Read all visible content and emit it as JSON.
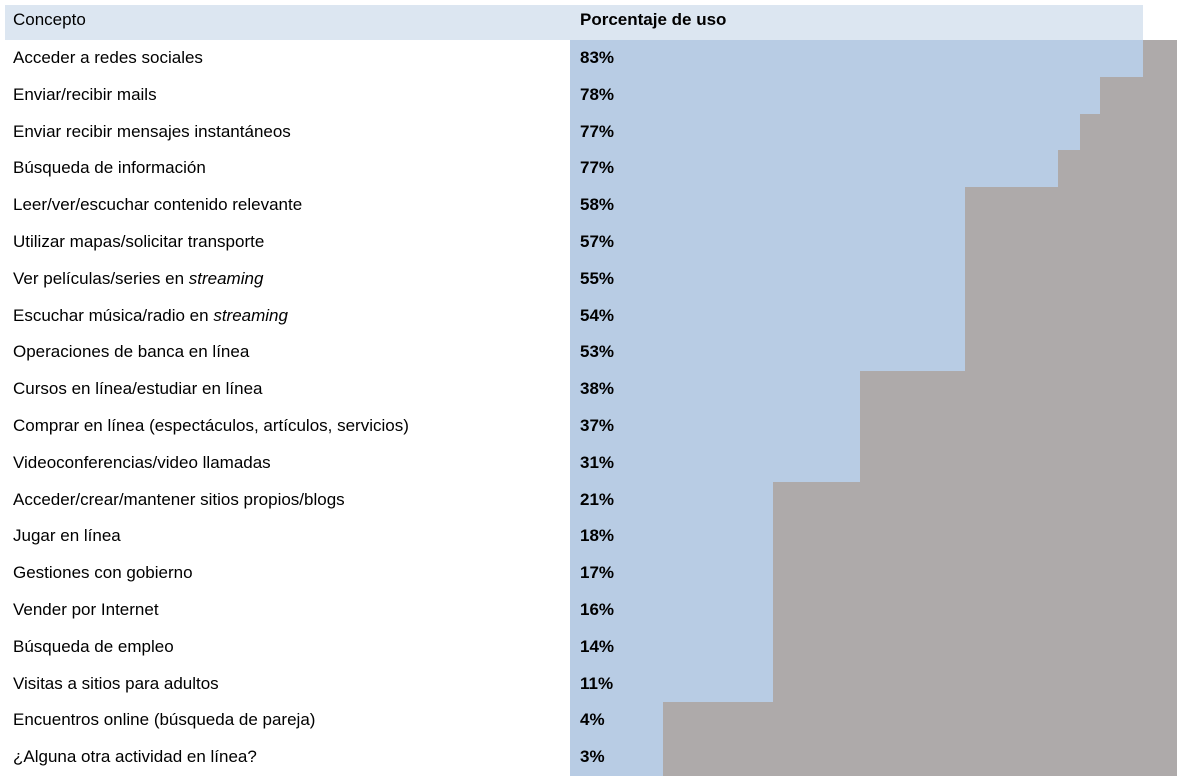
{
  "table": {
    "header": [
      "Concepto",
      "Porcentaje de uso"
    ],
    "rows": [
      [
        "Acceder a redes sociales",
        "83%"
      ],
      [
        "Enviar/recibir mails",
        "78%"
      ],
      [
        "Enviar recibir mensajes instantáneos",
        "77%"
      ],
      [
        "Búsqueda de información",
        "77%"
      ],
      [
        "Leer/ver/escuchar contenido relevante",
        "58%"
      ],
      [
        "Utilizar mapas/solicitar transporte",
        "57%"
      ],
      [
        "Ver películas/series en <i>streaming</i>",
        "55%"
      ],
      [
        "Escuchar música/radio en <i>streaming</i>",
        "54%"
      ],
      [
        "Operaciones de banca en línea",
        "53%"
      ],
      [
        "Cursos en línea/estudiar en línea",
        "38%"
      ],
      [
        "Comprar en línea (espectáculos, artículos, servicios)",
        "37%"
      ],
      [
        "Videoconferencias/video llamadas",
        "31%"
      ],
      [
        "Acceder/crear/mantener sitios propios/blogs",
        "21%"
      ],
      [
        "Jugar en línea",
        "18%"
      ],
      [
        "Gestiones con gobierno",
        "17%"
      ],
      [
        "Vender por Internet",
        "16%"
      ],
      [
        "Búsqueda de empleo",
        "14%"
      ],
      [
        "Visitas a sitios para adultos",
        "11%"
      ],
      [
        "Encuentros online (búsqueda de pareja)",
        "4%"
      ],
      [
        "¿Alguna otra actividad en línea?",
        "3%"
      ]
    ]
  }
}
